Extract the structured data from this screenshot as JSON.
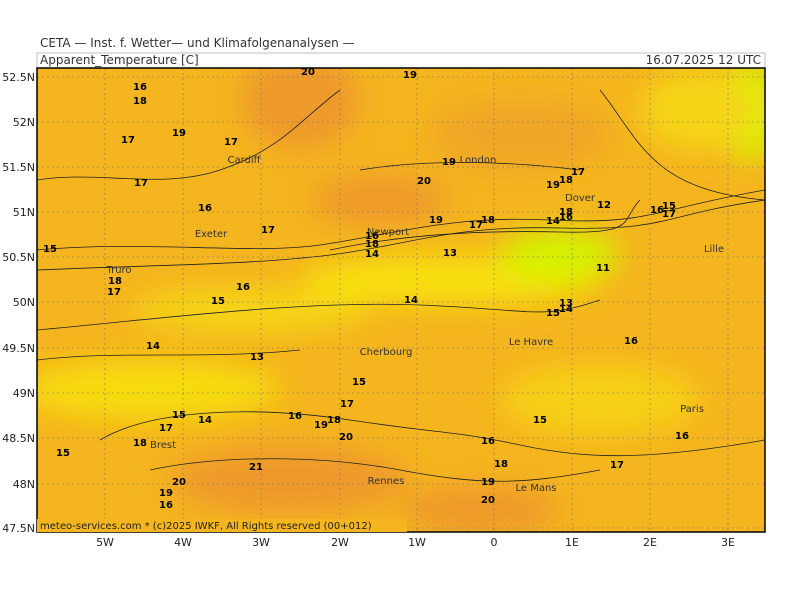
{
  "header": {
    "title": "CETA — Inst. f. Wetter— und Klimafolgenanalysen —",
    "field": "Apparent_Temperature [C]",
    "valid_time": "16.07.2025 12 UTC"
  },
  "map": {
    "lat_labels": [
      "52.5N",
      "52N",
      "51.5N",
      "51N",
      "50.5N",
      "50N",
      "49.5N",
      "49N",
      "48.5N",
      "48N",
      "47.5N"
    ],
    "lon_labels": [
      "5W",
      "4W",
      "3W",
      "2W",
      "1W",
      "0",
      "1E",
      "2E",
      "3E"
    ],
    "cities": [
      "Cardiff",
      "Exeter",
      "Truro",
      "Newport",
      "London",
      "Dover",
      "Lille",
      "Cherbourg",
      "Le Havre",
      "Paris",
      "Brest",
      "Rennes",
      "Le Mans"
    ],
    "contour_labels": [
      20,
      19,
      16,
      18,
      19,
      17,
      17,
      19,
      17,
      20,
      19,
      18,
      17,
      16,
      17,
      19,
      17,
      18,
      14,
      16,
      18,
      12,
      16,
      15,
      17,
      15,
      16,
      18,
      14,
      13,
      11,
      18,
      17,
      16,
      15,
      14,
      13,
      14,
      15,
      14,
      13,
      16,
      15,
      17,
      15,
      14,
      16,
      18,
      19,
      20,
      17,
      18,
      15,
      16,
      16,
      15,
      21,
      18,
      17,
      20,
      19,
      19,
      16,
      20
    ]
  },
  "footer": {
    "credit": "meteo-services.com * (c)2025 IWKF, All Rights reserved (00+012)"
  }
}
